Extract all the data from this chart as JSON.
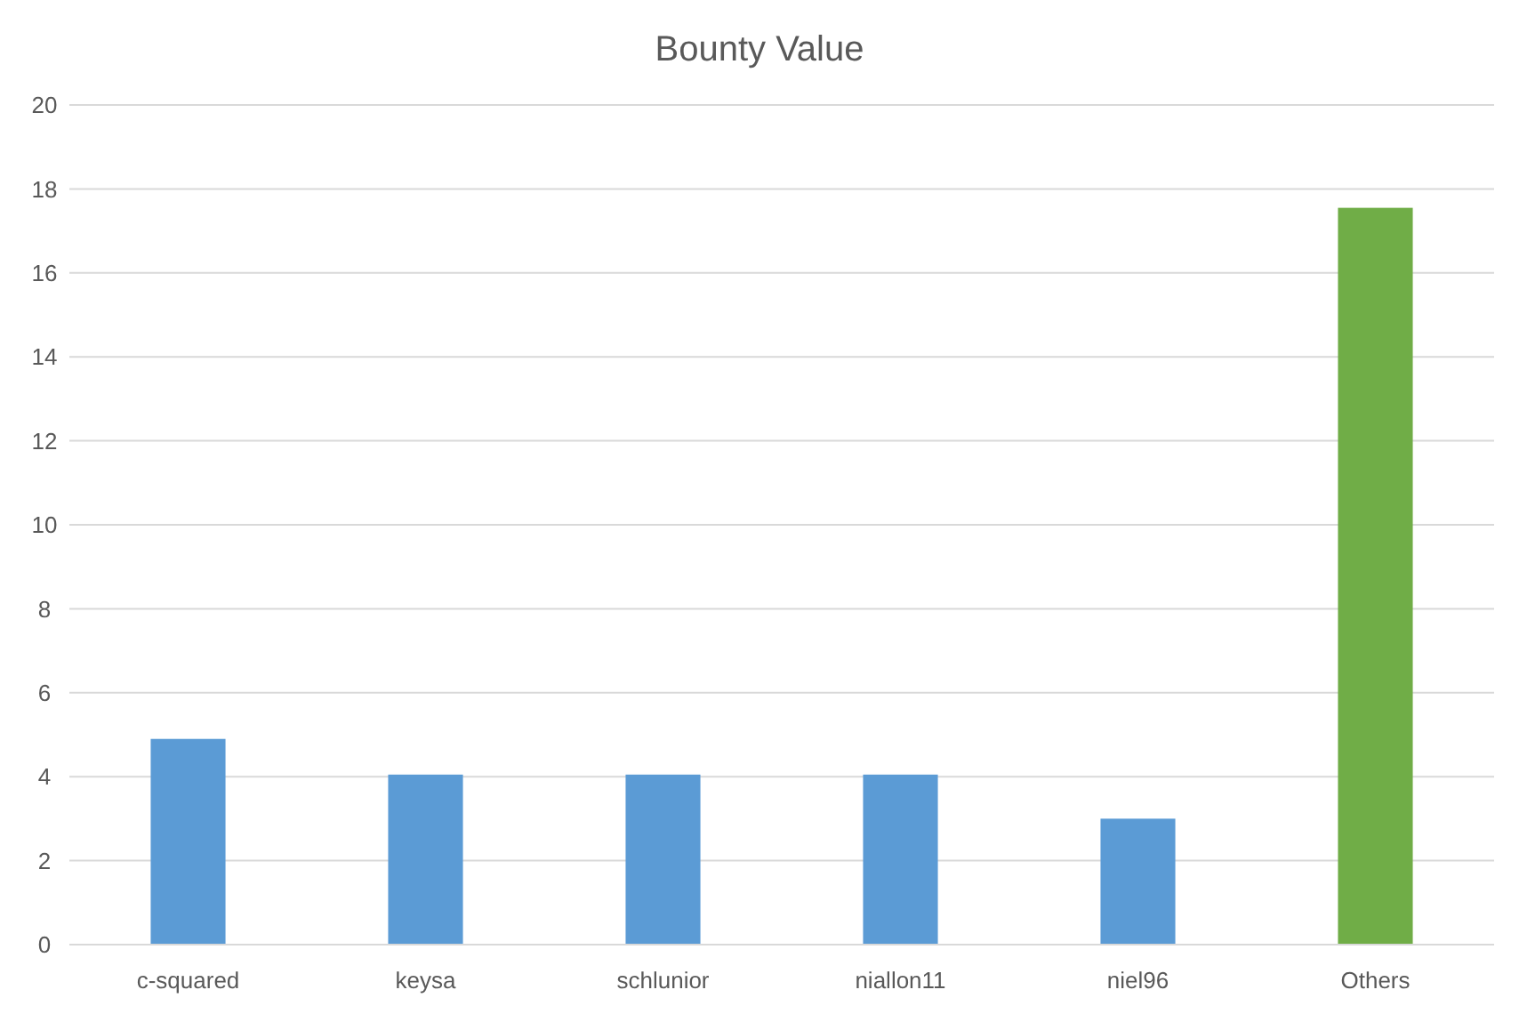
{
  "chart_data": {
    "type": "bar",
    "title": "Bounty Value",
    "categories": [
      "c-squared",
      "keysa",
      "schlunior",
      "niallon11",
      "niel96",
      "Others"
    ],
    "values": [
      4.9,
      4.05,
      4.05,
      4.05,
      3.0,
      17.55
    ],
    "colors": [
      "#5b9bd5",
      "#5b9bd5",
      "#5b9bd5",
      "#5b9bd5",
      "#5b9bd5",
      "#70ad47"
    ],
    "ylim": [
      0,
      20
    ],
    "yticks": [
      0,
      2,
      4,
      6,
      8,
      10,
      12,
      14,
      16,
      18,
      20
    ],
    "grid": "y"
  }
}
